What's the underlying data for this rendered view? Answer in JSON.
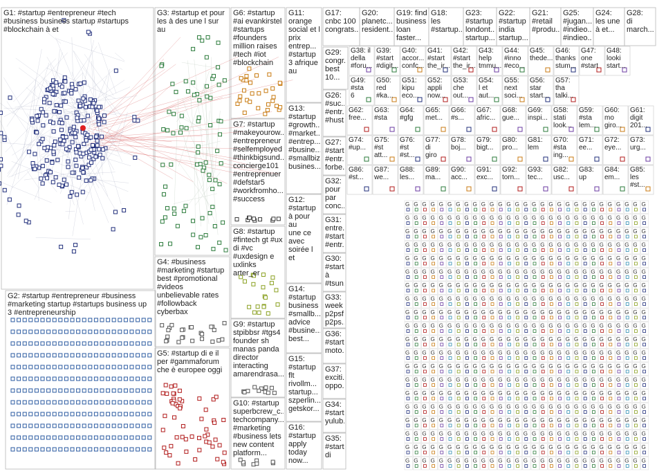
{
  "groups": [
    {
      "id": "G1",
      "label": "G1: #startup #entrepreneur #tech\n#business business startup #startups\n#blockchain à et",
      "color": "#1f2d7a"
    },
    {
      "id": "G2",
      "label": "G2: #startup #entrepreneur #business\n#marketing startup #startups business up\n3 #entrepreneurship",
      "color": "#2a5aa0"
    },
    {
      "id": "G3",
      "label": "G3: #startup et pour\nles à des une l sur\nau",
      "color": "#2a7a3a"
    },
    {
      "id": "G4",
      "label": "G4: #business\n#marketing #startup\nbest #promotional\n#videos\nunbelievable rates\n#followback\ncyberbax",
      "color": "#555555"
    },
    {
      "id": "G5",
      "label": "G5: #startup di e il\nper #gammaforum\nche è europee oggi",
      "color": "#b01818"
    },
    {
      "id": "G6",
      "label": "G6: #startup\n#ai evankirstel\n#startups\n#founders\nmillion raises\n#tech #iot\n#blockchain",
      "color": "#c87a10"
    },
    {
      "id": "G7",
      "label": "G7: #startup\n#makeyourow...\n#entrepreneur\n#selfemployed\n#thinkbigsund...\nconcierge101\n#entreprenuer\n#defstar5\n#workfromho...\n#success",
      "color": "#3a3a3a"
    },
    {
      "id": "G8",
      "label": "G8: #startup\n#fintech gt #ux\ndi #vc\n#uxdesign e\nuxlinks arter_er",
      "color": "#8aa020"
    },
    {
      "id": "G9",
      "label": "G9: #startup\nstpibbsr #tgs4\nfounder sh\nmanas panda\ndirector\ninteracting\namarendrasa...",
      "color": "#555555"
    },
    {
      "id": "G10",
      "label": "G10: #startup\nsuperbcrew_c...\ntechcompany...\n#marketing\n#business lets\nnew content\nplatform...",
      "color": "#555555"
    },
    {
      "id": "G11",
      "label": "G11:\norange\nsocial et l\nprix\nentrep...\n#startup\n3 afrique\nau",
      "color": "#6a3aa0"
    },
    {
      "id": "G12",
      "label": "G12:\n#startup\nà pour au\nune ce\navec\nsoirée l\net",
      "color": "#555555"
    },
    {
      "id": "G13",
      "label": "G13:\n#startup\n#growth...\n#market...\n#entrep...\n#busine...\n#smallbiz\nbusines...",
      "color": "#555555"
    },
    {
      "id": "G14",
      "label": "G14:\n#startup\nbusiness\n#smallb...\nadvice\n#busine...\nbest...",
      "color": "#555555"
    },
    {
      "id": "G15",
      "label": "G15:\n#startup\nflt\nrivollm...\nstartup...\nszperlin...\ngetskor...",
      "color": "#555555"
    },
    {
      "id": "G16",
      "label": "G16:\n#startup\napply\ntoday\nnow...",
      "color": "#555555"
    },
    {
      "id": "G17",
      "label": "G17:\ncnbc 100\ncongrats...",
      "color": "#555555"
    },
    {
      "id": "G18",
      "label": "G18:\nles\n#startup...",
      "color": "#555555"
    },
    {
      "id": "G19",
      "label": "G19: find\nbusiness\nloan\nfaster...",
      "color": "#555555"
    },
    {
      "id": "G20",
      "label": "G20:\nplanetc...\nresident...",
      "color": "#555555"
    },
    {
      "id": "G21",
      "label": "G21:\n#retail\n#produ...",
      "color": "#555555"
    },
    {
      "id": "G22",
      "label": "G22:\n#startup\nindia\nstartup...",
      "color": "#555555"
    },
    {
      "id": "G23",
      "label": "G23:\n#startup\nlondont...\nstartup...",
      "color": "#555555"
    },
    {
      "id": "G24",
      "label": "G24:\nles une\nà et...",
      "color": "#555555"
    },
    {
      "id": "G25",
      "label": "G25:\n#jugan...\n#indieo...\n#indieo...",
      "color": "#555555"
    },
    {
      "id": "G26",
      "label": "G26:\n#suc...\n#entr...\n#hust...",
      "color": "#555555"
    },
    {
      "id": "G27",
      "label": "G27:\n#start...\n#entr...\nforbe...",
      "color": "#555555"
    },
    {
      "id": "G28",
      "label": "G28:\ndi\nmarch...",
      "color": "#555555"
    },
    {
      "id": "G29",
      "label": "G29:\ncongr...\nbest\n10...",
      "color": "#555555"
    },
    {
      "id": "G30",
      "label": "G30:\n#start...\nà\n#tsun...",
      "color": "#555555"
    },
    {
      "id": "G31",
      "label": "G31:\nentre...\n#startup\n#entr...",
      "color": "#555555"
    },
    {
      "id": "G32",
      "label": "G32:\npour\npar\nconc...",
      "color": "#555555"
    },
    {
      "id": "G33",
      "label": "G33:\nweek\np2psf\np2ps...",
      "color": "#555555"
    },
    {
      "id": "G34",
      "label": "G34:\n#start...\nyulub...",
      "color": "#555555"
    },
    {
      "id": "G35",
      "label": "G35:\n#startup\ndi",
      "color": "#555555"
    },
    {
      "id": "G36",
      "label": "G36:\n#start...\nmoto...",
      "color": "#555555"
    },
    {
      "id": "G37",
      "label": "G37:\nexciti...\noppo...",
      "color": "#555555"
    }
  ],
  "tiles": [
    {
      "g": "G38",
      "t": "G38: il\ndella\n#foru..."
    },
    {
      "g": "G39",
      "t": "G39:\n#start\n#digit..."
    },
    {
      "g": "G40",
      "t": "G40:\naccor...\nconfc..."
    },
    {
      "g": "G41",
      "t": "G41:\n#start\nthe_ir..."
    },
    {
      "g": "G42",
      "t": "G42:\n#start\nthe_ir..."
    },
    {
      "g": "G43",
      "t": "G43:\nhelp\ntmmu..."
    },
    {
      "g": "G44",
      "t": "G44:\n#inno\n#eco..."
    },
    {
      "g": "G45",
      "t": "G45:\nthede..."
    },
    {
      "g": "G46",
      "t": "G46:\nthanks\nstum..."
    },
    {
      "g": "G47",
      "t": "G47:\none\n#start"
    },
    {
      "g": "G48",
      "t": "G48:\nlooki\nstart..."
    },
    {
      "g": "G49",
      "t": "G49:\n#sta\n6"
    },
    {
      "g": "G50",
      "t": "G50:\nred\n#ka..."
    },
    {
      "g": "G51",
      "t": "G51:\nkipu\neco..."
    },
    {
      "g": "G52",
      "t": "G52:\nappli\nnow..."
    },
    {
      "g": "G53",
      "t": "G53:\nche\nout..."
    },
    {
      "g": "G54",
      "t": "G54:\nl et\naut..."
    },
    {
      "g": "G55",
      "t": "G55:\nnext\nsoci..."
    },
    {
      "g": "G56",
      "t": "G56:\nstar\nstart..."
    },
    {
      "g": "G57",
      "t": "G57:\ntha\ntalki..."
    },
    {
      "g": "G58",
      "t": "G58:\nstati\nlook..."
    },
    {
      "g": "G59",
      "t": "G59:\n#sta\nlem..."
    },
    {
      "g": "G60",
      "t": "G60:\nmo\ngiro..."
    },
    {
      "g": "G61",
      "t": "G61:\ndigit\n201..."
    },
    {
      "g": "G62",
      "t": "G62:\nfree..."
    },
    {
      "g": "G63",
      "t": "G63:\n#sta"
    },
    {
      "g": "G64",
      "t": "G64:\n#gfg"
    },
    {
      "g": "G65",
      "t": "G65:\nmet..."
    },
    {
      "g": "G66",
      "t": "G66:\n#s..."
    },
    {
      "g": "G67",
      "t": "G67:\nafric..."
    },
    {
      "g": "G68",
      "t": "G68:\ngue..."
    },
    {
      "g": "G69",
      "t": "G69:\ninspi..."
    },
    {
      "g": "G70",
      "t": "G70:\n#sta\ning..."
    },
    {
      "g": "G71",
      "t": "G71:\nee..."
    },
    {
      "g": "G72",
      "t": "G72:\neye..."
    },
    {
      "g": "G73",
      "t": "G73:\nurg..."
    },
    {
      "g": "G74",
      "t": "G74:\n#up..."
    },
    {
      "g": "G75",
      "t": "G75:\n#st\natt..."
    },
    {
      "g": "G76",
      "t": "G76:\n#st\n#st..."
    },
    {
      "g": "G77",
      "t": "G77:\ndi\ngiro"
    },
    {
      "g": "G78",
      "t": "G78:\nboj..."
    },
    {
      "g": "G79",
      "t": "G79:\nbigt..."
    },
    {
      "g": "G80",
      "t": "G80:\npro..."
    },
    {
      "g": "G81",
      "t": "G81:\nlem"
    },
    {
      "g": "G82",
      "t": "G82:\nusc..."
    },
    {
      "g": "G83",
      "t": "G83:\nup"
    },
    {
      "g": "G84",
      "t": "G84:\nem..."
    },
    {
      "g": "G85",
      "t": "G85:\nles\n#st..."
    },
    {
      "g": "G86",
      "t": "G86:\n#st..."
    },
    {
      "g": "G87",
      "t": "G87:\nwe..."
    },
    {
      "g": "G88",
      "t": "G88:\nles..."
    },
    {
      "g": "G89",
      "t": "G89:\nma..."
    },
    {
      "g": "G90",
      "t": "G90:\nacc..."
    },
    {
      "g": "G91",
      "t": "G91:\nexc..."
    },
    {
      "g": "G92",
      "t": "G92:\ntorn..."
    },
    {
      "g": "G93",
      "t": "G93:\ntec..."
    }
  ]
}
